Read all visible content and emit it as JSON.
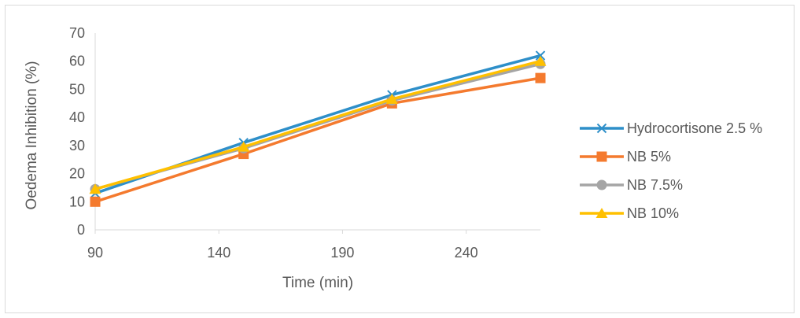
{
  "chart_data": {
    "type": "line",
    "title": "",
    "xlabel": "Time (min)",
    "ylabel": "Oedema Inhibition (%)",
    "x": [
      90,
      150,
      210,
      270
    ],
    "xlim": [
      90,
      270
    ],
    "ylim": [
      0,
      70
    ],
    "x_ticks": [
      "90",
      "140",
      "190",
      "240"
    ],
    "y_ticks": [
      "0",
      "10",
      "20",
      "30",
      "40",
      "50",
      "60",
      "70"
    ],
    "grid": false,
    "legend_position": "right",
    "series": [
      {
        "name": "Hydrocortisone 2.5 %",
        "color": "#2E8FC9",
        "marker": "x",
        "values": [
          13,
          31,
          48,
          62
        ]
      },
      {
        "name": "NB 5%",
        "color": "#F47A2E",
        "marker": "square",
        "values": [
          10,
          27,
          45,
          54
        ]
      },
      {
        "name": "NB 7.5%",
        "color": "#A5A5A5",
        "marker": "circle",
        "values": [
          14.5,
          29,
          46,
          59
        ]
      },
      {
        "name": "NB 10%",
        "color": "#FFC000",
        "marker": "triangle",
        "values": [
          14.5,
          29.5,
          46.5,
          60
        ]
      }
    ]
  }
}
